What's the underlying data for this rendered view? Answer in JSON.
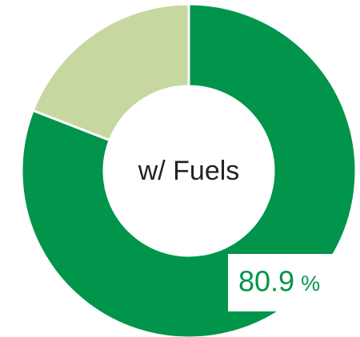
{
  "chart_data": {
    "type": "pie",
    "donut": true,
    "center_label": "w/ Fuels",
    "values": [
      80.9,
      19.1
    ],
    "colors": [
      "#00954a",
      "#c6d8a0"
    ],
    "unit": "%"
  }
}
